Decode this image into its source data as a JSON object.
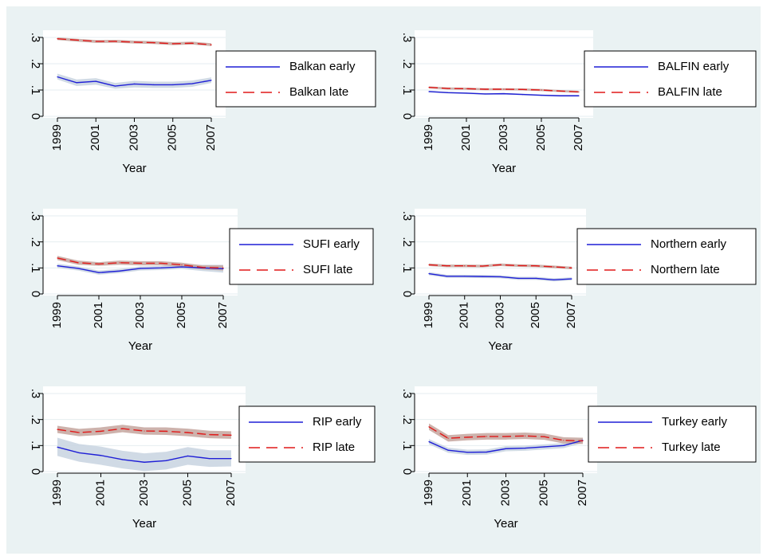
{
  "chart_data": [
    {
      "type": "line",
      "xlabel": "Year",
      "ylabel": "",
      "x": [
        1999,
        2000,
        2001,
        2002,
        2003,
        2004,
        2005,
        2006,
        2007
      ],
      "xticks": [
        "1999",
        "2001",
        "2003",
        "2005",
        "2007"
      ],
      "yticks": [
        "0",
        ".1",
        ".2",
        ".3"
      ],
      "ylim": [
        0,
        0.3
      ],
      "legend": "right",
      "series": [
        {
          "name": "Balkan early",
          "style": "solid",
          "color": "#1f1fd6",
          "values": [
            0.15,
            0.128,
            0.133,
            0.115,
            0.123,
            0.12,
            0.12,
            0.124,
            0.137
          ],
          "ci_low": [
            0.14,
            0.115,
            0.12,
            0.105,
            0.11,
            0.108,
            0.108,
            0.112,
            0.127
          ],
          "ci_high": [
            0.162,
            0.14,
            0.145,
            0.127,
            0.135,
            0.132,
            0.132,
            0.136,
            0.148
          ]
        },
        {
          "name": "Balkan late",
          "style": "dashed",
          "color": "#e01818",
          "values": [
            0.295,
            0.29,
            0.285,
            0.285,
            0.282,
            0.28,
            0.276,
            0.278,
            0.272
          ],
          "ci_low": [
            0.29,
            0.284,
            0.279,
            0.28,
            0.277,
            0.275,
            0.271,
            0.273,
            0.267
          ],
          "ci_high": [
            0.3,
            0.295,
            0.29,
            0.291,
            0.288,
            0.286,
            0.282,
            0.284,
            0.278
          ]
        }
      ]
    },
    {
      "type": "line",
      "xlabel": "Year",
      "ylabel": "",
      "x": [
        1999,
        2000,
        2001,
        2002,
        2003,
        2004,
        2005,
        2006,
        2007
      ],
      "xticks": [
        "1999",
        "2001",
        "2003",
        "2005",
        "2007"
      ],
      "yticks": [
        "0",
        ".1",
        ".2",
        ".3"
      ],
      "ylim": [
        0,
        0.3
      ],
      "legend": "right",
      "series": [
        {
          "name": "BALFIN early",
          "style": "solid",
          "color": "#1f1fd6",
          "values": [
            0.094,
            0.09,
            0.088,
            0.085,
            0.086,
            0.083,
            0.08,
            0.078,
            0.078
          ],
          "ci_low": [
            0.091,
            0.087,
            0.085,
            0.082,
            0.083,
            0.08,
            0.077,
            0.075,
            0.075
          ],
          "ci_high": [
            0.097,
            0.093,
            0.091,
            0.088,
            0.089,
            0.086,
            0.083,
            0.081,
            0.081
          ]
        },
        {
          "name": "BALFIN late",
          "style": "dashed",
          "color": "#e01818",
          "values": [
            0.11,
            0.106,
            0.105,
            0.103,
            0.103,
            0.102,
            0.1,
            0.096,
            0.093
          ],
          "ci_low": [
            0.106,
            0.102,
            0.101,
            0.099,
            0.099,
            0.098,
            0.096,
            0.092,
            0.089
          ],
          "ci_high": [
            0.114,
            0.11,
            0.109,
            0.107,
            0.107,
            0.106,
            0.104,
            0.1,
            0.097
          ]
        }
      ]
    },
    {
      "type": "line",
      "xlabel": "Year",
      "ylabel": "",
      "x": [
        1999,
        2000,
        2001,
        2002,
        2003,
        2004,
        2005,
        2006,
        2007
      ],
      "xticks": [
        "1999",
        "2001",
        "2003",
        "2005",
        "2007"
      ],
      "yticks": [
        "0",
        ".1",
        ".2",
        ".3"
      ],
      "ylim": [
        0,
        0.3
      ],
      "legend": "right",
      "series": [
        {
          "name": "SUFI early",
          "style": "solid",
          "color": "#1f1fd6",
          "values": [
            0.108,
            0.098,
            0.082,
            0.088,
            0.098,
            0.1,
            0.104,
            0.1,
            0.097
          ],
          "ci_low": [
            0.1,
            0.09,
            0.074,
            0.08,
            0.09,
            0.092,
            0.096,
            0.088,
            0.082
          ],
          "ci_high": [
            0.116,
            0.106,
            0.09,
            0.096,
            0.106,
            0.108,
            0.112,
            0.112,
            0.112
          ]
        },
        {
          "name": "SUFI late",
          "style": "dashed",
          "color": "#e01818",
          "values": [
            0.138,
            0.12,
            0.115,
            0.12,
            0.118,
            0.118,
            0.112,
            0.102,
            0.1
          ],
          "ci_low": [
            0.13,
            0.112,
            0.108,
            0.112,
            0.11,
            0.11,
            0.104,
            0.094,
            0.09
          ],
          "ci_high": [
            0.146,
            0.128,
            0.122,
            0.128,
            0.126,
            0.126,
            0.12,
            0.11,
            0.11
          ]
        }
      ]
    },
    {
      "type": "line",
      "xlabel": "Year",
      "ylabel": "",
      "x": [
        1999,
        2000,
        2001,
        2002,
        2003,
        2004,
        2005,
        2006,
        2007
      ],
      "xticks": [
        "1999",
        "2001",
        "2003",
        "2005",
        "2007"
      ],
      "yticks": [
        "0",
        ".1",
        ".2",
        ".3"
      ],
      "ylim": [
        0,
        0.3
      ],
      "legend": "right",
      "series": [
        {
          "name": "Northern early",
          "style": "solid",
          "color": "#1f1fd6",
          "values": [
            0.078,
            0.068,
            0.068,
            0.067,
            0.066,
            0.06,
            0.06,
            0.054,
            0.058
          ],
          "ci_low": [
            0.072,
            0.062,
            0.062,
            0.061,
            0.06,
            0.054,
            0.054,
            0.048,
            0.052
          ],
          "ci_high": [
            0.084,
            0.074,
            0.074,
            0.073,
            0.072,
            0.066,
            0.066,
            0.06,
            0.064
          ]
        },
        {
          "name": "Northern late",
          "style": "dashed",
          "color": "#e01818",
          "values": [
            0.112,
            0.108,
            0.108,
            0.107,
            0.112,
            0.109,
            0.108,
            0.104,
            0.1
          ],
          "ci_low": [
            0.107,
            0.103,
            0.103,
            0.102,
            0.107,
            0.104,
            0.103,
            0.099,
            0.095
          ],
          "ci_high": [
            0.117,
            0.113,
            0.113,
            0.112,
            0.117,
            0.114,
            0.113,
            0.109,
            0.105
          ]
        }
      ]
    },
    {
      "type": "line",
      "xlabel": "Year",
      "ylabel": "",
      "x": [
        1999,
        2000,
        2001,
        2002,
        2003,
        2004,
        2005,
        2006,
        2007
      ],
      "xticks": [
        "1999",
        "2001",
        "2003",
        "2005",
        "2007"
      ],
      "yticks": [
        "0",
        ".1",
        ".2",
        ".3"
      ],
      "ylim": [
        0,
        0.3
      ],
      "legend": "right",
      "series": [
        {
          "name": "RIP early",
          "style": "solid",
          "color": "#1f1fd6",
          "values": [
            0.094,
            0.072,
            0.062,
            0.046,
            0.036,
            0.042,
            0.06,
            0.05,
            0.05
          ],
          "ci_low": [
            0.06,
            0.038,
            0.026,
            0.012,
            0.002,
            0.008,
            0.026,
            0.018,
            0.02
          ],
          "ci_high": [
            0.13,
            0.106,
            0.096,
            0.08,
            0.07,
            0.076,
            0.094,
            0.082,
            0.082
          ]
        },
        {
          "name": "RIP late",
          "style": "dashed",
          "color": "#e01818",
          "values": [
            0.162,
            0.15,
            0.155,
            0.165,
            0.156,
            0.155,
            0.15,
            0.142,
            0.14
          ],
          "ci_low": [
            0.148,
            0.136,
            0.141,
            0.151,
            0.142,
            0.141,
            0.136,
            0.128,
            0.126
          ],
          "ci_high": [
            0.176,
            0.164,
            0.17,
            0.18,
            0.17,
            0.17,
            0.165,
            0.157,
            0.155
          ]
        }
      ]
    },
    {
      "type": "line",
      "xlabel": "Year",
      "ylabel": "",
      "x": [
        1999,
        2000,
        2001,
        2002,
        2003,
        2004,
        2005,
        2006,
        2007
      ],
      "xticks": [
        "1999",
        "2001",
        "2003",
        "2005",
        "2007"
      ],
      "yticks": [
        "0",
        ".1",
        ".2",
        ".3"
      ],
      "ylim": [
        0,
        0.3
      ],
      "legend": "right",
      "series": [
        {
          "name": "Turkey early",
          "style": "solid",
          "color": "#1f1fd6",
          "values": [
            0.115,
            0.082,
            0.074,
            0.075,
            0.088,
            0.09,
            0.095,
            0.1,
            0.12
          ],
          "ci_low": [
            0.105,
            0.072,
            0.064,
            0.065,
            0.078,
            0.08,
            0.085,
            0.09,
            0.11
          ],
          "ci_high": [
            0.125,
            0.092,
            0.084,
            0.085,
            0.098,
            0.1,
            0.105,
            0.11,
            0.13
          ]
        },
        {
          "name": "Turkey late",
          "style": "dashed",
          "color": "#e01818",
          "values": [
            0.172,
            0.128,
            0.132,
            0.135,
            0.135,
            0.137,
            0.134,
            0.12,
            0.118
          ],
          "ci_low": [
            0.16,
            0.115,
            0.12,
            0.123,
            0.123,
            0.125,
            0.122,
            0.108,
            0.106
          ],
          "ci_high": [
            0.185,
            0.14,
            0.145,
            0.148,
            0.148,
            0.15,
            0.146,
            0.132,
            0.13
          ]
        }
      ]
    }
  ],
  "colors": {
    "background": "#eaf2f3",
    "plot_area": "#ffffff",
    "grid": "#e6eef0",
    "ci_early": "#c8d4e0",
    "ci_late": "#c4a49e"
  }
}
